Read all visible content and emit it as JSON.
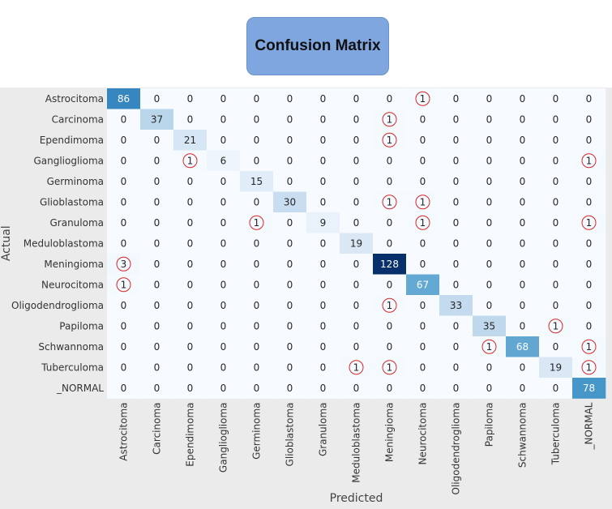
{
  "title": "Confusion Matrix",
  "chart_data": {
    "type": "heatmap",
    "title": "Confusion Matrix",
    "xlabel": "Predicted",
    "ylabel": "Actual",
    "colormap": "Blues",
    "colors": {
      "low": "#f7fbff",
      "high": "#08306b",
      "highlight_circle": "#d62728",
      "background": "#ebebeb"
    },
    "value_range": [
      0,
      128
    ],
    "highlight_rule": "off-diagonal nonzero cells circled",
    "x_categories": [
      "Astrocitoma",
      "Carcinoma",
      "Ependimoma",
      "Ganglioglioma",
      "Germinoma",
      "Glioblastoma",
      "Granuloma",
      "Meduloblastoma",
      "Meningioma",
      "Neurocitoma",
      "Oligodendroglioma",
      "Papiloma",
      "Schwannoma",
      "Tuberculoma",
      "_NORMAL"
    ],
    "y_categories": [
      "Astrocitoma",
      "Carcinoma",
      "Ependimoma",
      "Ganglioglioma",
      "Germinoma",
      "Glioblastoma",
      "Granuloma",
      "Meduloblastoma",
      "Meningioma",
      "Neurocitoma",
      "Oligodendroglioma",
      "Papiloma",
      "Schwannoma",
      "Tuberculoma",
      "_NORMAL"
    ],
    "matrix": [
      [
        86,
        0,
        0,
        0,
        0,
        0,
        0,
        0,
        0,
        1,
        0,
        0,
        0,
        0,
        0
      ],
      [
        0,
        37,
        0,
        0,
        0,
        0,
        0,
        0,
        1,
        0,
        0,
        0,
        0,
        0,
        0
      ],
      [
        0,
        0,
        21,
        0,
        0,
        0,
        0,
        0,
        1,
        0,
        0,
        0,
        0,
        0,
        0
      ],
      [
        0,
        0,
        1,
        6,
        0,
        0,
        0,
        0,
        0,
        0,
        0,
        0,
        0,
        0,
        1
      ],
      [
        0,
        0,
        0,
        0,
        15,
        0,
        0,
        0,
        0,
        0,
        0,
        0,
        0,
        0,
        0
      ],
      [
        0,
        0,
        0,
        0,
        0,
        30,
        0,
        0,
        1,
        1,
        0,
        0,
        0,
        0,
        0
      ],
      [
        0,
        0,
        0,
        0,
        1,
        0,
        9,
        0,
        0,
        1,
        0,
        0,
        0,
        0,
        1
      ],
      [
        0,
        0,
        0,
        0,
        0,
        0,
        0,
        19,
        0,
        0,
        0,
        0,
        0,
        0,
        0
      ],
      [
        3,
        0,
        0,
        0,
        0,
        0,
        0,
        0,
        128,
        0,
        0,
        0,
        0,
        0,
        0
      ],
      [
        1,
        0,
        0,
        0,
        0,
        0,
        0,
        0,
        0,
        67,
        0,
        0,
        0,
        0,
        0
      ],
      [
        0,
        0,
        0,
        0,
        0,
        0,
        0,
        0,
        1,
        0,
        33,
        0,
        0,
        0,
        0
      ],
      [
        0,
        0,
        0,
        0,
        0,
        0,
        0,
        0,
        0,
        0,
        0,
        35,
        0,
        1,
        0
      ],
      [
        0,
        0,
        0,
        0,
        0,
        0,
        0,
        0,
        0,
        0,
        0,
        1,
        68,
        0,
        1
      ],
      [
        0,
        0,
        0,
        0,
        0,
        0,
        0,
        1,
        1,
        0,
        0,
        0,
        0,
        19,
        1
      ],
      [
        0,
        0,
        0,
        0,
        0,
        0,
        0,
        0,
        0,
        0,
        0,
        0,
        0,
        0,
        78
      ]
    ]
  }
}
